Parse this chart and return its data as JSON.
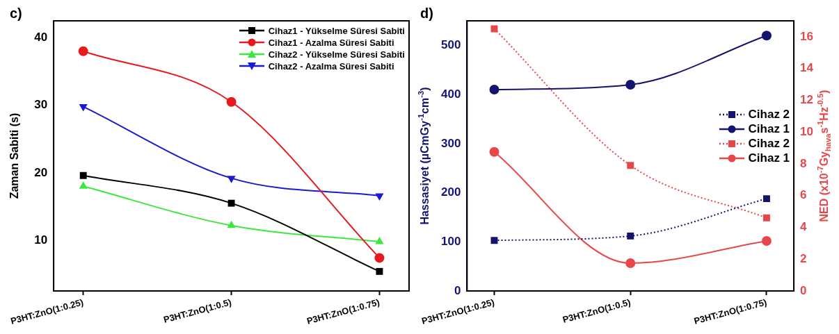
{
  "chart_data": [
    {
      "type": "line",
      "title": "c)",
      "categories": [
        "P3HT:ZnO(1:0.25)",
        "P3HT:ZnO(1:0.5)",
        "P3HT:ZnO(1:0.75)"
      ],
      "ylabel": "Zaman Sabiti (s)",
      "ylim": [
        2.5,
        42.5
      ],
      "yticks": [
        10,
        20,
        30,
        40
      ],
      "legend": "top right",
      "series": [
        {
          "name": "Cihaz1 - Yükselme Süresi Sabiti",
          "color": "#000000",
          "marker": "square",
          "values": [
            19.6,
            15.5,
            5.4
          ]
        },
        {
          "name": "Cihaz1 - Azalma Süresi Sabiti",
          "color": "#e8191c",
          "marker": "circle",
          "values": [
            38,
            30.5,
            7.4
          ]
        },
        {
          "name": "Cihaz2 - Yükselme Süresi Sabiti",
          "color": "#3de83d",
          "marker": "triangle",
          "values": [
            18,
            12.2,
            9.8
          ]
        },
        {
          "name": "Cihaz2 - Azalma Süresi Sabiti",
          "color": "#1a1ad0",
          "marker": "triangle-down",
          "values": [
            29.8,
            19.2,
            16.6
          ]
        }
      ]
    },
    {
      "type": "line",
      "title": "d)",
      "categories": [
        "P3HT:ZnO(1:0.25)",
        "P3HT:ZnO(1:0.5)",
        "P3HT:ZnO(1:0.75)"
      ],
      "ylabel": "Hassasiyet (µCmGy$^{-1}$cm$^{-3}$)",
      "y2label": "NED (x10$^{-7}$Gy$_{hava}$s$^{-1}$Hz$^{-0.5}$)",
      "ylim": [
        0,
        550
      ],
      "yticks": [
        0,
        100,
        200,
        300,
        400,
        500
      ],
      "y2lim": [
        0,
        17
      ],
      "y2ticks": [
        0,
        2,
        4,
        6,
        8,
        10,
        12,
        14,
        16
      ],
      "legend": "right",
      "series": [
        {
          "name": "Cihaz 2",
          "color": "#14146e",
          "marker": "square",
          "line_style": "dotted",
          "values": [
            103,
            112,
            188
          ]
        },
        {
          "name": "Cihaz 1",
          "color": "#14146e",
          "marker": "circle",
          "values": [
            410,
            420,
            520
          ]
        },
        {
          "name": "Cihaz 2",
          "color": "#e8474a",
          "marker": "square",
          "line_style": "dotted",
          "axis": "y2",
          "values": [
            16.5,
            7.9,
            4.6
          ]
        },
        {
          "name": "Cihaz 1",
          "color": "#e8474a",
          "marker": "circle",
          "axis": "y2",
          "values": [
            8.75,
            1.75,
            3.15
          ]
        }
      ]
    }
  ]
}
